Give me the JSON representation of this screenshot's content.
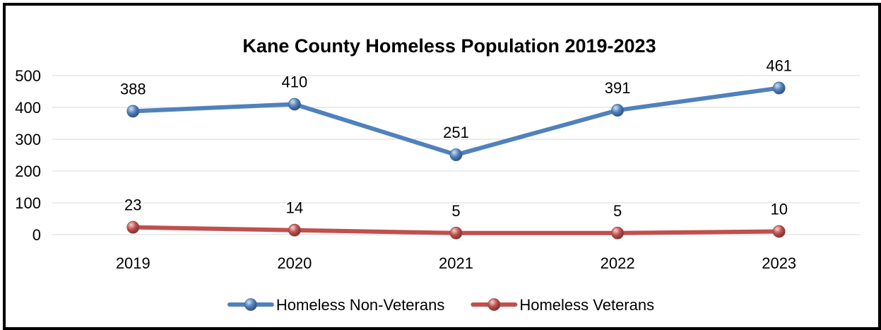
{
  "chart_data": {
    "type": "line",
    "title": "Kane County Homeless Population 2019-2023",
    "categories": [
      "2019",
      "2020",
      "2021",
      "2022",
      "2023"
    ],
    "series": [
      {
        "name": "Homeless Non-Veterans",
        "values": [
          388,
          410,
          251,
          391,
          461
        ],
        "color": "#4f81bd"
      },
      {
        "name": "Homeless Veterans",
        "values": [
          23,
          14,
          5,
          5,
          10
        ],
        "color": "#c0504d"
      }
    ],
    "ylim": [
      0,
      500
    ],
    "yticks": [
      0,
      100,
      200,
      300,
      400,
      500
    ],
    "grid": true,
    "legend": "bottom",
    "data_labels": true
  }
}
